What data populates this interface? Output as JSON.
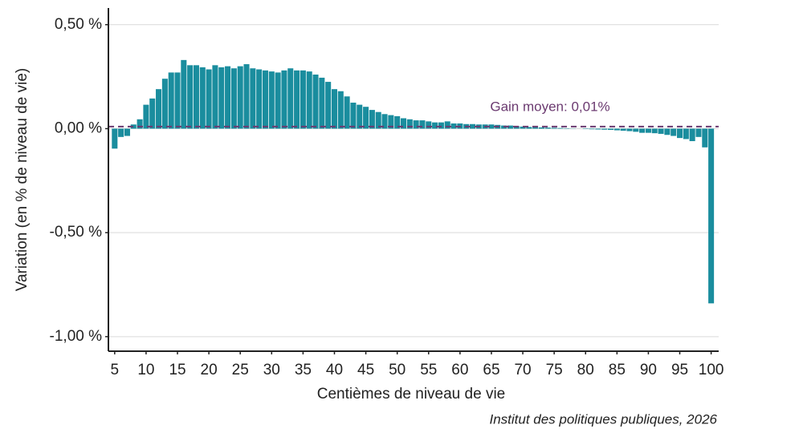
{
  "chart_data": {
    "type": "bar",
    "x": [
      5,
      6,
      7,
      8,
      9,
      10,
      11,
      12,
      13,
      14,
      15,
      16,
      17,
      18,
      19,
      20,
      21,
      22,
      23,
      24,
      25,
      26,
      27,
      28,
      29,
      30,
      31,
      32,
      33,
      34,
      35,
      36,
      37,
      38,
      39,
      40,
      41,
      42,
      43,
      44,
      45,
      46,
      47,
      48,
      49,
      50,
      51,
      52,
      53,
      54,
      55,
      56,
      57,
      58,
      59,
      60,
      61,
      62,
      63,
      64,
      65,
      66,
      67,
      68,
      69,
      70,
      71,
      72,
      73,
      74,
      75,
      76,
      77,
      78,
      79,
      80,
      81,
      82,
      83,
      84,
      85,
      86,
      87,
      88,
      89,
      90,
      91,
      92,
      93,
      94,
      95,
      96,
      97,
      98,
      99,
      100
    ],
    "values": [
      -0.096,
      -0.04,
      -0.035,
      0.02,
      0.045,
      0.115,
      0.145,
      0.19,
      0.24,
      0.27,
      0.27,
      0.33,
      0.305,
      0.305,
      0.295,
      0.285,
      0.305,
      0.295,
      0.3,
      0.29,
      0.3,
      0.31,
      0.29,
      0.285,
      0.28,
      0.275,
      0.27,
      0.28,
      0.29,
      0.28,
      0.28,
      0.275,
      0.26,
      0.245,
      0.225,
      0.19,
      0.18,
      0.155,
      0.125,
      0.115,
      0.105,
      0.09,
      0.08,
      0.07,
      0.065,
      0.06,
      0.05,
      0.045,
      0.04,
      0.04,
      0.035,
      0.03,
      0.03,
      0.035,
      0.025,
      0.025,
      0.022,
      0.022,
      0.02,
      0.02,
      0.02,
      0.018,
      0.015,
      0.015,
      0.012,
      0.01,
      0.008,
      0.007,
      0.006,
      0.005,
      0.004,
      0.003,
      0.002,
      0.001,
      0,
      -0.002,
      -0.003,
      -0.004,
      -0.005,
      -0.006,
      -0.008,
      -0.01,
      -0.012,
      -0.015,
      -0.02,
      -0.02,
      -0.022,
      -0.025,
      -0.03,
      -0.035,
      -0.045,
      -0.05,
      -0.06,
      -0.04,
      -0.09,
      -0.84
    ],
    "color": "#1a8d9e",
    "xlim": [
      4,
      101.2
    ],
    "xticks": [
      5,
      10,
      15,
      20,
      25,
      30,
      35,
      40,
      45,
      50,
      55,
      60,
      65,
      70,
      75,
      80,
      85,
      90,
      95,
      100
    ],
    "ylim": [
      -1.07,
      0.58
    ],
    "yticks": [
      {
        "value": -1,
        "label": "-1,00 %"
      },
      {
        "value": -0.5,
        "label": "-0,50 %"
      },
      {
        "value": 0,
        "label": "0,00 %"
      },
      {
        "value": 0.5,
        "label": "0,50 %"
      }
    ],
    "grid": true,
    "xlabel": "Centièmes de niveau de vie",
    "ylabel": "Variation (en % de niveau de vie)",
    "mean_line": {
      "value": 0.01,
      "label": "Gain moyen: 0,01%",
      "color": "#6b3a70"
    },
    "source": "Institut des politiques publiques, 2026"
  }
}
